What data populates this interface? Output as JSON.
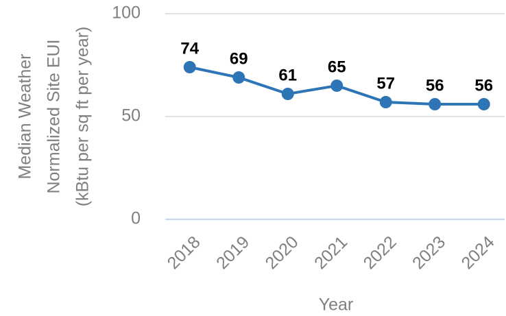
{
  "chart_data": {
    "type": "line",
    "y_label": [
      "Median Weather",
      "Normalized Site EUI",
      "(kBtu per sq ft per year)"
    ],
    "x_label": "Year",
    "categories": [
      "2018",
      "2019",
      "2020",
      "2021",
      "2022",
      "2023",
      "2024"
    ],
    "series": [
      {
        "name": "Median Weather Normalized Site EUI",
        "color": "#2e75b6",
        "values": [
          74,
          69,
          61,
          65,
          57,
          56,
          56
        ]
      }
    ],
    "ylim": [
      0,
      100
    ],
    "yticks": [
      0,
      50,
      100
    ],
    "grid": true
  }
}
